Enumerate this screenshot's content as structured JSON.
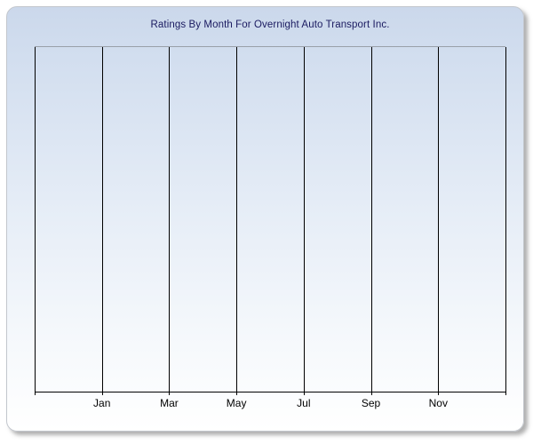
{
  "panel": {
    "title": "Ratings By Month For Overnight Auto Transport Inc.",
    "title_color": "#1a1a60",
    "background_top": "#cbd8eb",
    "background_bottom": "#ffffff",
    "border_color": "#c3c7cd",
    "shadow_color": "#6e6e6e"
  },
  "chart_data": {
    "type": "line",
    "title": "Ratings By Month For Overnight Auto Transport Inc.",
    "xlabel": "",
    "ylabel": "",
    "x_axis": {
      "tick_labels": [
        "Jan",
        "Mar",
        "May",
        "Jul",
        "Sep",
        "Nov"
      ],
      "gridline_count": 8,
      "months_per_division": 2,
      "labels_start_at_gridline_index": 1
    },
    "y_axis": {
      "tick_labels": [],
      "visible": false
    },
    "series": [],
    "grid": "vertical-only",
    "gridline_color": "#000000",
    "axis_color": "#000000",
    "plot_top_border_color": "#99a0a8",
    "legend": "none",
    "note": "empty plot - no data points rendered"
  }
}
